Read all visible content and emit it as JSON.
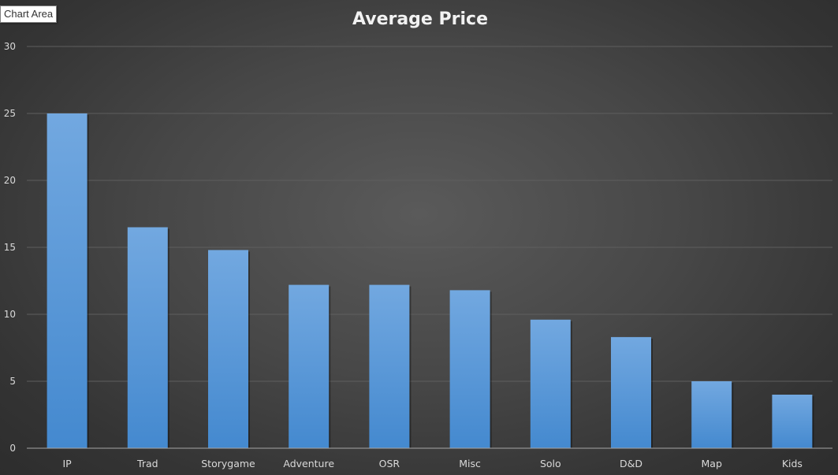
{
  "tooltip": {
    "label": "Chart Area"
  },
  "colors": {
    "bar_top": "#72a8e0",
    "bar_bottom": "#4489cf",
    "gridline": "#5e5e5e",
    "axis": "#a6a6a6"
  },
  "chart_data": {
    "type": "bar",
    "title": "Average Price",
    "xlabel": "",
    "ylabel": "",
    "categories": [
      "IP",
      "Trad",
      "Storygame",
      "Adventure",
      "OSR",
      "Misc",
      "Solo",
      "D&D",
      "Map",
      "Kids"
    ],
    "values": [
      25,
      16.5,
      14.8,
      12.2,
      12.2,
      11.8,
      9.6,
      8.3,
      5.0,
      4.0
    ],
    "ylim": [
      0,
      30
    ],
    "yticks": [
      0,
      5,
      10,
      15,
      20,
      25,
      30
    ],
    "grid": true,
    "legend": "none"
  }
}
